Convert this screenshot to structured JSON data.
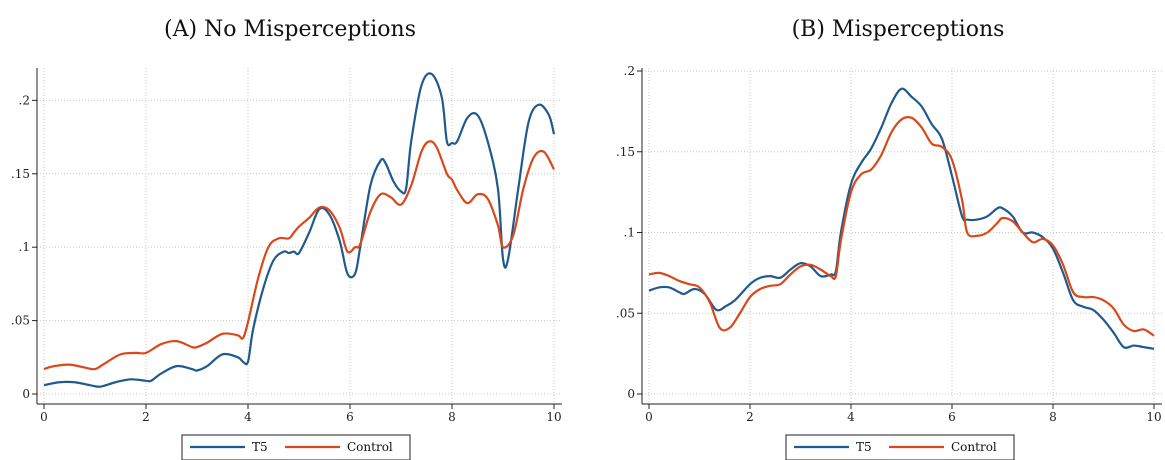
{
  "chart_data": [
    {
      "type": "line",
      "title": "(A) No Misperceptions",
      "xlabel": "",
      "ylabel": "",
      "xlim": [
        0,
        10
      ],
      "ylim": [
        0,
        0.22
      ],
      "xticks": [
        0,
        2,
        4,
        6,
        8,
        10
      ],
      "xtick_labels": [
        "0",
        "2",
        "4",
        "6",
        "8",
        "10"
      ],
      "yticks": [
        0,
        0.05,
        0.1,
        0.15,
        0.2
      ],
      "ytick_labels": [
        "0",
        ".05",
        ".1",
        ".15",
        ".2"
      ],
      "grid": true,
      "legend_position": "bottom",
      "series": [
        {
          "name": "T5",
          "color": "#1f5a8e",
          "x": [
            0,
            0.3,
            0.6,
            0.9,
            1.1,
            1.4,
            1.7,
            2.0,
            2.1,
            2.3,
            2.6,
            2.9,
            3.0,
            3.2,
            3.5,
            3.8,
            3.9,
            4.0,
            4.1,
            4.3,
            4.5,
            4.7,
            4.8,
            4.9,
            5.0,
            5.2,
            5.4,
            5.6,
            5.8,
            5.95,
            6.1,
            6.2,
            6.4,
            6.6,
            6.7,
            6.85,
            7.0,
            7.1,
            7.2,
            7.4,
            7.6,
            7.8,
            7.9,
            8.0,
            8.1,
            8.3,
            8.5,
            8.7,
            8.9,
            9.0,
            9.1,
            9.3,
            9.5,
            9.7,
            9.9,
            10.0
          ],
          "values": [
            0.006,
            0.008,
            0.008,
            0.006,
            0.005,
            0.008,
            0.01,
            0.009,
            0.009,
            0.014,
            0.019,
            0.017,
            0.016,
            0.019,
            0.027,
            0.025,
            0.022,
            0.022,
            0.044,
            0.072,
            0.091,
            0.097,
            0.096,
            0.097,
            0.096,
            0.11,
            0.126,
            0.122,
            0.104,
            0.082,
            0.082,
            0.1,
            0.142,
            0.159,
            0.157,
            0.145,
            0.138,
            0.14,
            0.172,
            0.21,
            0.218,
            0.202,
            0.172,
            0.171,
            0.172,
            0.188,
            0.19,
            0.172,
            0.14,
            0.092,
            0.092,
            0.14,
            0.185,
            0.197,
            0.19,
            0.177
          ]
        },
        {
          "name": "Control",
          "color": "#d9481a",
          "x": [
            0,
            0.2,
            0.5,
            0.8,
            1.0,
            1.2,
            1.5,
            1.8,
            2.0,
            2.3,
            2.6,
            2.9,
            3.0,
            3.2,
            3.5,
            3.8,
            3.9,
            4.0,
            4.2,
            4.4,
            4.6,
            4.8,
            4.9,
            5.0,
            5.2,
            5.4,
            5.6,
            5.8,
            5.95,
            6.1,
            6.2,
            6.4,
            6.6,
            6.8,
            7.0,
            7.2,
            7.4,
            7.55,
            7.7,
            7.9,
            8.0,
            8.1,
            8.3,
            8.5,
            8.7,
            8.9,
            9.0,
            9.2,
            9.4,
            9.6,
            9.8,
            10.0
          ],
          "values": [
            0.017,
            0.019,
            0.02,
            0.018,
            0.017,
            0.021,
            0.027,
            0.028,
            0.028,
            0.034,
            0.036,
            0.032,
            0.032,
            0.035,
            0.041,
            0.04,
            0.038,
            0.049,
            0.079,
            0.1,
            0.106,
            0.106,
            0.11,
            0.114,
            0.12,
            0.127,
            0.125,
            0.113,
            0.097,
            0.1,
            0.102,
            0.124,
            0.136,
            0.134,
            0.129,
            0.142,
            0.165,
            0.172,
            0.168,
            0.15,
            0.146,
            0.139,
            0.13,
            0.136,
            0.133,
            0.115,
            0.1,
            0.108,
            0.14,
            0.161,
            0.165,
            0.153
          ]
        }
      ]
    },
    {
      "type": "line",
      "title": "(B) Misperceptions",
      "xlabel": "",
      "ylabel": "",
      "xlim": [
        0,
        10
      ],
      "ylim": [
        0,
        0.2
      ],
      "xticks": [
        0,
        2,
        4,
        6,
        8,
        10
      ],
      "xtick_labels": [
        "0",
        "2",
        "4",
        "6",
        "8",
        "10"
      ],
      "yticks": [
        0,
        0.05,
        0.1,
        0.15,
        0.2
      ],
      "ytick_labels": [
        "0",
        ".05",
        ".1",
        ".15",
        ".2"
      ],
      "grid": true,
      "legend_position": "bottom",
      "series": [
        {
          "name": "T5",
          "color": "#1f5a8e",
          "x": [
            0,
            0.2,
            0.4,
            0.6,
            0.7,
            0.9,
            1.1,
            1.3,
            1.4,
            1.5,
            1.7,
            2.0,
            2.2,
            2.4,
            2.6,
            2.8,
            3.0,
            3.2,
            3.4,
            3.6,
            3.7,
            3.8,
            4.0,
            4.2,
            4.4,
            4.6,
            4.8,
            5.0,
            5.2,
            5.4,
            5.6,
            5.8,
            6.0,
            6.2,
            6.3,
            6.5,
            6.7,
            6.9,
            7.0,
            7.2,
            7.4,
            7.6,
            7.8,
            8.0,
            8.2,
            8.4,
            8.6,
            8.8,
            9.0,
            9.2,
            9.4,
            9.6,
            9.8,
            10.0
          ],
          "values": [
            0.064,
            0.066,
            0.066,
            0.063,
            0.062,
            0.065,
            0.062,
            0.053,
            0.052,
            0.054,
            0.058,
            0.068,
            0.072,
            0.073,
            0.072,
            0.077,
            0.081,
            0.079,
            0.073,
            0.074,
            0.076,
            0.1,
            0.13,
            0.143,
            0.152,
            0.165,
            0.18,
            0.189,
            0.184,
            0.178,
            0.167,
            0.158,
            0.135,
            0.11,
            0.108,
            0.108,
            0.11,
            0.115,
            0.115,
            0.11,
            0.1,
            0.1,
            0.097,
            0.09,
            0.075,
            0.058,
            0.054,
            0.052,
            0.046,
            0.038,
            0.029,
            0.03,
            0.029,
            0.028
          ]
        },
        {
          "name": "Control",
          "color": "#d9481a",
          "x": [
            0,
            0.2,
            0.4,
            0.6,
            0.8,
            1.0,
            1.2,
            1.4,
            1.6,
            1.8,
            2.0,
            2.2,
            2.4,
            2.6,
            2.8,
            3.0,
            3.2,
            3.4,
            3.6,
            3.7,
            3.8,
            4.0,
            4.2,
            4.4,
            4.6,
            4.8,
            5.0,
            5.2,
            5.4,
            5.6,
            5.8,
            6.0,
            6.2,
            6.3,
            6.5,
            6.7,
            6.9,
            7.0,
            7.2,
            7.4,
            7.6,
            7.8,
            8.0,
            8.2,
            8.4,
            8.6,
            8.8,
            9.0,
            9.2,
            9.4,
            9.6,
            9.8,
            10.0
          ],
          "values": [
            0.074,
            0.075,
            0.073,
            0.07,
            0.068,
            0.066,
            0.057,
            0.041,
            0.041,
            0.05,
            0.06,
            0.065,
            0.067,
            0.068,
            0.074,
            0.079,
            0.08,
            0.077,
            0.073,
            0.073,
            0.095,
            0.125,
            0.136,
            0.139,
            0.148,
            0.162,
            0.17,
            0.171,
            0.165,
            0.155,
            0.153,
            0.145,
            0.12,
            0.1,
            0.098,
            0.1,
            0.106,
            0.109,
            0.107,
            0.1,
            0.094,
            0.096,
            0.092,
            0.08,
            0.063,
            0.06,
            0.06,
            0.058,
            0.053,
            0.043,
            0.039,
            0.04,
            0.036
          ]
        }
      ]
    }
  ]
}
